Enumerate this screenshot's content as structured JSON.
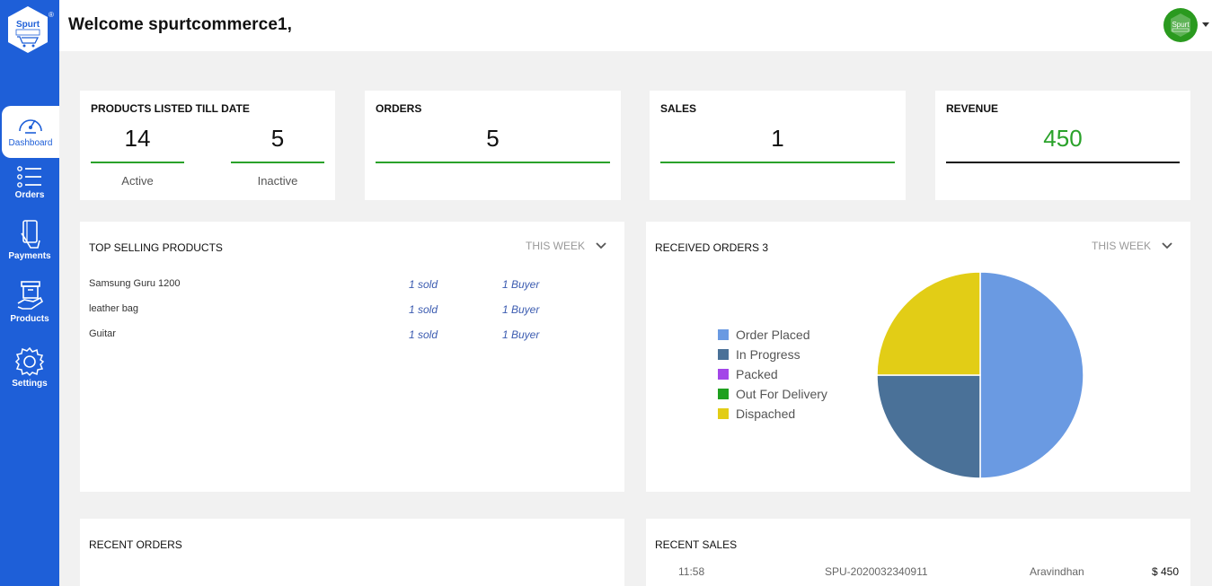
{
  "sidebar": {
    "logo_icon": "spurt-commerce-logo",
    "items": [
      {
        "label": "Dashboard",
        "icon": "gauge-icon",
        "active": true
      },
      {
        "label": "Orders",
        "icon": "list-icon"
      },
      {
        "label": "Payments",
        "icon": "payment-card-icon"
      },
      {
        "label": "Products",
        "icon": "box-hand-icon"
      },
      {
        "label": "Settings",
        "icon": "gear-icon"
      }
    ]
  },
  "header": {
    "welcome": "Welcome spurtcommerce1,"
  },
  "stats": {
    "products": {
      "title": "PRODUCTS LISTED TILL DATE",
      "active_value": "14",
      "active_label": "Active",
      "inactive_value": "5",
      "inactive_label": "Inactive"
    },
    "orders": {
      "title": "ORDERS",
      "value": "5"
    },
    "sales": {
      "title": "SALES",
      "value": "1"
    },
    "revenue": {
      "title": "REVENUE",
      "value": "450"
    }
  },
  "top_selling": {
    "title": "TOP SELLING PRODUCTS",
    "filter": "THIS WEEK",
    "rows": [
      {
        "name": "Samsung Guru 1200",
        "sold": "1 sold",
        "buyers": "1 Buyer"
      },
      {
        "name": "leather bag",
        "sold": "1 sold",
        "buyers": "1 Buyer"
      },
      {
        "name": "Guitar",
        "sold": "1 sold",
        "buyers": "1 Buyer"
      }
    ]
  },
  "received_orders": {
    "title": "RECEIVED ORDERS 3",
    "filter": "THIS WEEK"
  },
  "chart_data": {
    "type": "pie",
    "categories": [
      "Order Placed",
      "In Progress",
      "Packed",
      "Out For Delivery",
      "Dispached"
    ],
    "values": [
      2,
      1,
      0,
      0,
      1
    ],
    "colors": [
      "#6a9ae2",
      "#4a7198",
      "#a346e8",
      "#1fa01f",
      "#e2cd16"
    ],
    "legend": "left"
  },
  "recent_orders": {
    "title": "RECENT ORDERS"
  },
  "recent_sales": {
    "title": "RECENT SALES",
    "rows": [
      {
        "time": "11:58",
        "order_id": "SPU-2020032340911",
        "customer": "Aravindhan",
        "amount": "$ 450"
      }
    ]
  },
  "colors": {
    "sidebar": "#1e5fd8",
    "accent_green": "#2aa22a",
    "revenue_green": "#2aa22a"
  }
}
